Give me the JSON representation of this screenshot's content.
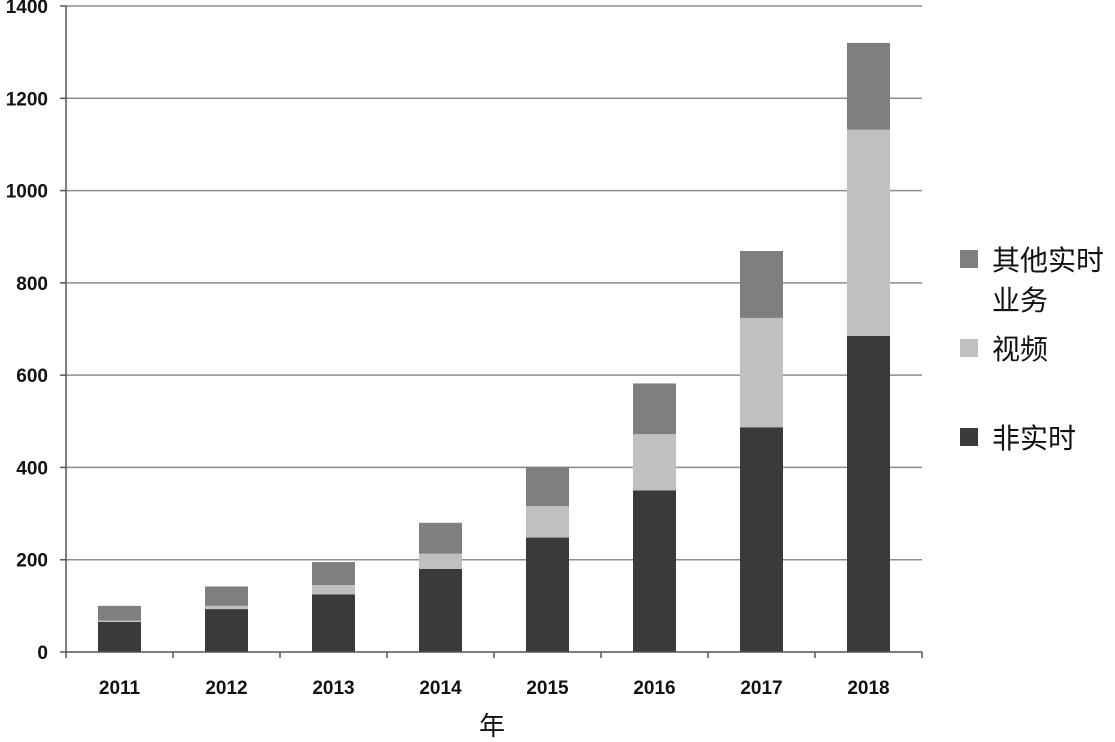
{
  "chart_data": {
    "type": "bar",
    "stacked": true,
    "categories": [
      "2011",
      "2012",
      "2013",
      "2014",
      "2015",
      "2016",
      "2017",
      "2018"
    ],
    "series": [
      {
        "name": "非实时",
        "color": "#3a3a3a",
        "values": [
          65,
          93,
          125,
          180,
          248,
          350,
          487,
          685
        ]
      },
      {
        "name": "视频",
        "color": "#c0c0c0",
        "values": [
          3,
          7,
          20,
          33,
          68,
          122,
          237,
          447
        ]
      },
      {
        "name": "其他实时业务",
        "name_lines": [
          "其他实时",
          "业务"
        ],
        "color": "#7f7f7f",
        "values": [
          32,
          42,
          50,
          67,
          85,
          110,
          145,
          188
        ]
      }
    ],
    "xlabel": "年",
    "ylabel": "",
    "ylim": [
      0,
      1400
    ],
    "yticks": [
      0,
      200,
      400,
      600,
      800,
      1000,
      1200,
      1400
    ],
    "grid": true,
    "legend_position": "right"
  }
}
